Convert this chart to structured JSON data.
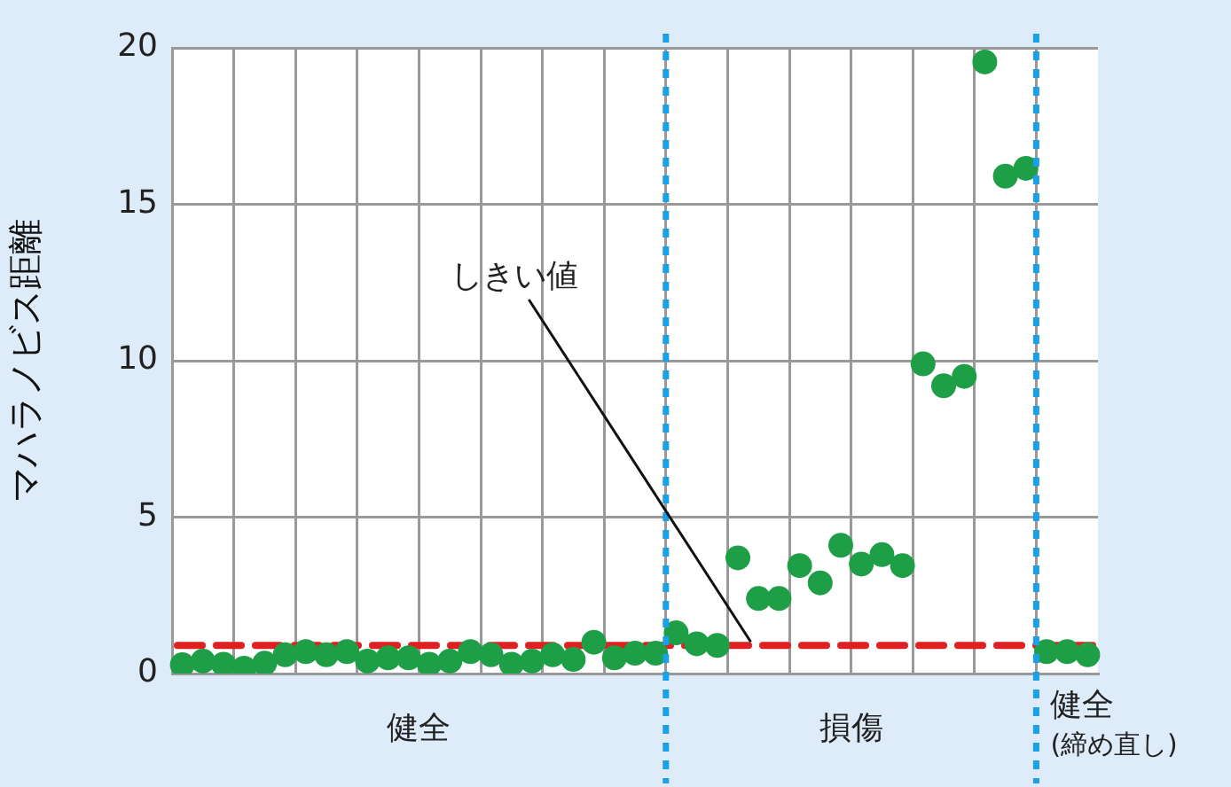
{
  "chart_data": {
    "type": "scatter",
    "ylabel": "マハラノビス距離",
    "categories": [
      null,
      null,
      null,
      null,
      null,
      null,
      null,
      null,
      null,
      null,
      null,
      null,
      null,
      null,
      null,
      null,
      null,
      null,
      null,
      null,
      null,
      null,
      null,
      null,
      null,
      null,
      null,
      null,
      null,
      null,
      null,
      null,
      null,
      null,
      null,
      null,
      null,
      null,
      null,
      null,
      null,
      null,
      null,
      null,
      null
    ],
    "ylim": [
      0,
      20
    ],
    "yticks": [
      0,
      5,
      10,
      15,
      20
    ],
    "grid": true,
    "tick_labels": "y",
    "marker": "circle",
    "series": [
      {
        "color": "#1f9e48",
        "values": [
          0.28,
          0.4,
          0.3,
          0.17,
          0.33,
          0.6,
          0.7,
          0.6,
          0.7,
          0.4,
          0.5,
          0.5,
          0.3,
          0.4,
          0.7,
          0.6,
          0.3,
          0.4,
          0.6,
          0.45,
          1.0,
          0.5,
          0.65,
          0.65,
          null,
          null,
          null,
          null,
          null,
          null,
          null,
          null,
          null,
          null,
          null,
          null,
          null,
          null,
          null,
          null,
          null,
          null,
          null,
          null,
          null
        ]
      },
      {
        "color": "#1f9e48",
        "values": [
          null,
          null,
          null,
          null,
          null,
          null,
          null,
          null,
          null,
          null,
          null,
          null,
          null,
          null,
          null,
          null,
          null,
          null,
          null,
          null,
          null,
          null,
          null,
          null,
          1.3,
          0.95,
          0.9,
          3.7,
          2.4,
          2.4,
          3.45,
          2.9,
          4.1,
          3.5,
          3.8,
          3.45,
          9.9,
          9.2,
          9.5,
          19.55,
          15.9,
          16.15,
          null,
          null,
          null
        ]
      },
      {
        "color": "#1f9e48",
        "values": [
          null,
          null,
          null,
          null,
          null,
          null,
          null,
          null,
          null,
          null,
          null,
          null,
          null,
          null,
          null,
          null,
          null,
          null,
          null,
          null,
          null,
          null,
          null,
          null,
          null,
          null,
          null,
          null,
          null,
          null,
          null,
          null,
          null,
          null,
          null,
          null,
          null,
          null,
          null,
          null,
          null,
          null,
          0.7,
          0.7,
          0.6
        ]
      }
    ],
    "ref_lines": [
      {
        "axis": "y",
        "value": 0.9,
        "label": "しきい値",
        "color": "#e02020",
        "line_style": "dashed"
      }
    ],
    "annotations": [
      "健全",
      "損傷",
      "健全\n(締め直し)"
    ]
  }
}
